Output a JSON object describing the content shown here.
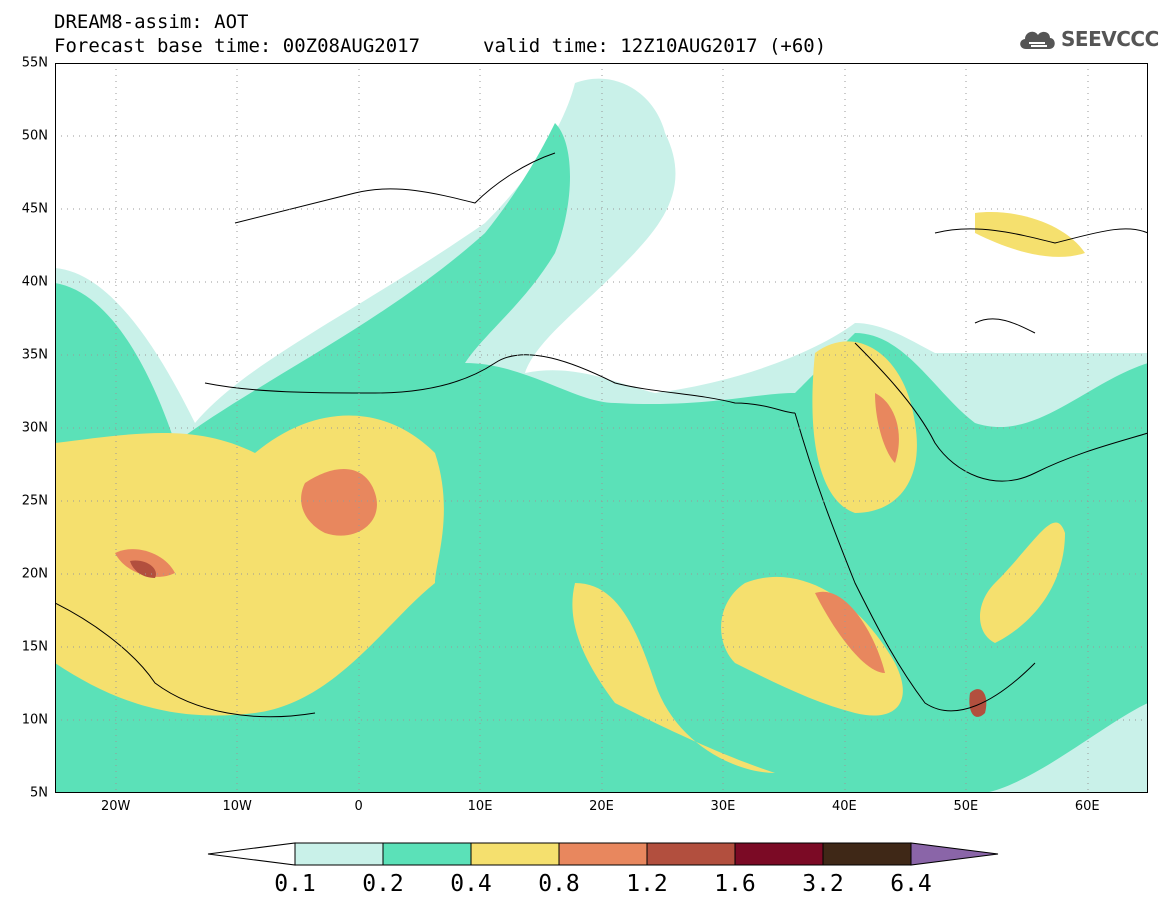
{
  "header": {
    "line1": "DREAM8-assim: AOT",
    "line2": "Forecast base time: 00Z08AUG2017",
    "valid": "valid time: 12Z10AUG2017 (+60)"
  },
  "logo": {
    "text": "SEEVCCC",
    "icon": "cloud-icon"
  },
  "map": {
    "lon_range": [
      -25,
      65
    ],
    "lat_range": [
      5,
      55
    ],
    "lat_ticks": [
      "55N",
      "50N",
      "45N",
      "40N",
      "35N",
      "30N",
      "25N",
      "20N",
      "15N",
      "10N",
      "5N"
    ],
    "lon_ticks": [
      "20W",
      "10W",
      "0",
      "10E",
      "20E",
      "30E",
      "40E",
      "50E",
      "60E"
    ]
  },
  "legend": {
    "labels": [
      "0.1",
      "0.2",
      "0.4",
      "0.8",
      "1.2",
      "1.6",
      "3.2",
      "6.4"
    ],
    "colors": [
      "#ffffff",
      "#c9f1e9",
      "#5be1b8",
      "#f5e06e",
      "#e8875e",
      "#b24f3e",
      "#7b0a25",
      "#3f2817",
      "#8a65a8"
    ]
  }
}
